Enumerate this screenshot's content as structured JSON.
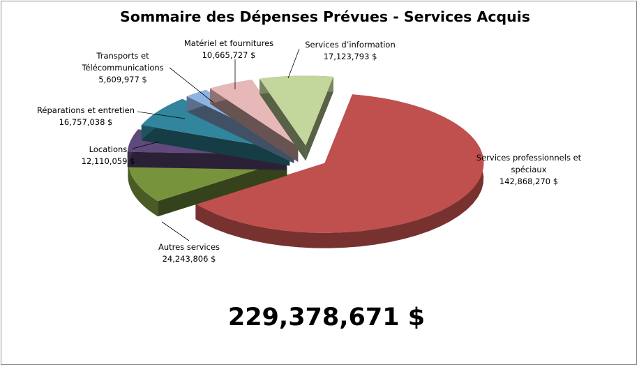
{
  "chart_data": {
    "type": "pie",
    "title": "Sommaire des Dépenses Prévues - Services Acquis",
    "total_label": "229,378,671 $",
    "slices": [
      {
        "name_lines": [
          "Services professionnels et",
          "spéciaux"
        ],
        "value": 142868270,
        "value_label": "142,868,270 $",
        "color": "#c0504d"
      },
      {
        "name_lines": [
          "Autres services"
        ],
        "value": 24243806,
        "value_label": "24,243,806 $",
        "color": "#77933c"
      },
      {
        "name_lines": [
          "Locations"
        ],
        "value": 12110059,
        "value_label": "12,110,059 $",
        "color": "#604a7b"
      },
      {
        "name_lines": [
          "Réparations et entretien"
        ],
        "value": 16757038,
        "value_label": "16,757,038 $",
        "color": "#31859c"
      },
      {
        "name_lines": [
          "Transports et",
          "Télécommunications"
        ],
        "value": 5609977,
        "value_label": "5,609,977 $",
        "color": "#8eb4e3"
      },
      {
        "name_lines": [
          "Matériel et fournitures"
        ],
        "value": 10665727,
        "value_label": "10,665,727 $",
        "color": "#e6b9b8"
      },
      {
        "name_lines": [
          "Services d’information"
        ],
        "value": 17123793,
        "value_label": "17,123,793 $",
        "color": "#c3d69b"
      }
    ],
    "exploded": true,
    "legend": "none"
  }
}
